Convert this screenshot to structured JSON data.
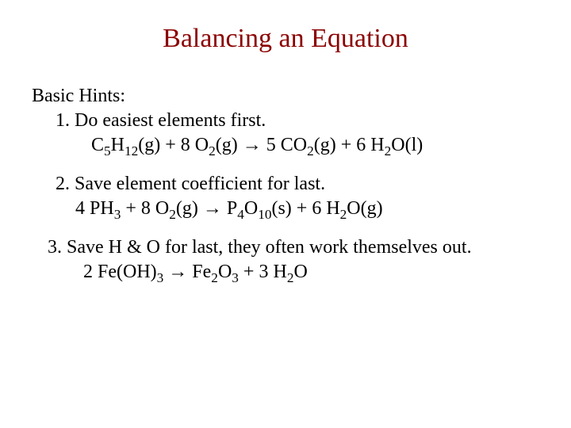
{
  "title": "Balancing an Equation",
  "section_label": "Basic Hints:",
  "hint1": {
    "text": "1.  Do easiest elements first.",
    "eq": {
      "c1": "",
      "r1a": "C",
      "s1a": "5",
      "r1b": "H",
      "s1b": "12",
      "r1c": "(g) + ",
      "c2": "8",
      "r2a": " O",
      "s2": "2",
      "r2b": "(g) ",
      "arrow": "→",
      "c3": " 5",
      "r3a": " CO",
      "s3": "2",
      "r3b": "(g) + ",
      "c4": " 6",
      "r4a": " H",
      "s4": "2",
      "r4b": "O(l)"
    }
  },
  "hint2": {
    "text": "2.  Save element coefficient for last.",
    "eq": {
      "c1": "4",
      "r1a": " PH",
      "s1": "3",
      "r1b": " + ",
      "c2": "8",
      "r2a": " O",
      "s2": "2",
      "r2b": "(g)   ",
      "arrow": "→",
      "r3a": "   P",
      "s3a": "4",
      "r3b": "O",
      "s3b": "10",
      "r3c": "(s) + ",
      "c4": "6",
      "r4a": " H",
      "s4": "2",
      "r4b": "O(g)"
    }
  },
  "hint3": {
    "text": "3. Save H & O for last, they often work themselves out.",
    "eq": {
      "c1": "2",
      "r1a": " Fe(OH)",
      "s1": "3",
      "r1b": " ",
      "arrow": "→",
      "r2a": "    Fe",
      "s2a": "2",
      "r2b": "O",
      "s2b": "3",
      "r2c": " + ",
      "c3": " 3",
      "r3a": " H",
      "s3": "2",
      "r3b": "O"
    }
  },
  "colors": {
    "title": "#8b0000",
    "text": "#000000",
    "background": "#ffffff"
  },
  "fontsize": {
    "title": 34,
    "body": 24
  }
}
